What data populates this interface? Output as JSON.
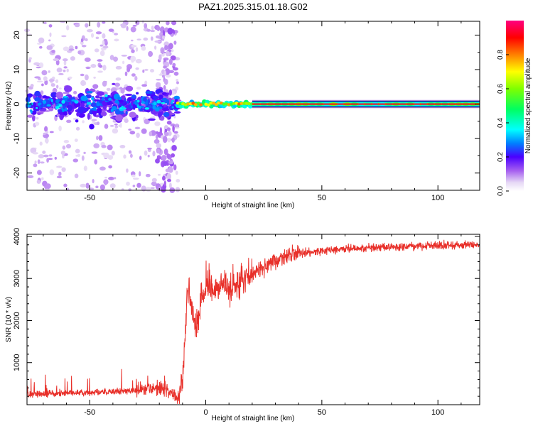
{
  "title": "PAZ1.2025.315.01.18.G02",
  "chart_data": [
    {
      "type": "heatmap",
      "xlabel": "Height of straight line (km)",
      "ylabel": "Frequency (Hz)",
      "xlim": [
        -77,
        118
      ],
      "ylim": [
        -25,
        24
      ],
      "xticks": [
        -50,
        0,
        50,
        100
      ],
      "yticks": [
        -20,
        -10,
        0,
        10,
        20
      ],
      "colorbar": {
        "label": "Normalized spectral amplitude",
        "range": [
          0.0,
          1.0
        ],
        "ticks": [
          0.0,
          0.2,
          0.4,
          0.6,
          0.8
        ],
        "tick_labels": [
          "0.0",
          "0.2",
          "0.4",
          "0.6",
          "0.8"
        ]
      },
      "description_regions": [
        {
          "x_range": [
            -77,
            -12
          ],
          "freq_range": [
            -25,
            24
          ],
          "amplitude": "scattered low (0.0-0.3), strongest near 0 Hz"
        },
        {
          "x_range": [
            -12,
            20
          ],
          "freq_range": [
            -2,
            2
          ],
          "amplitude": "blobs 0.3-0.9 along 0 Hz"
        },
        {
          "x_range": [
            20,
            118
          ],
          "freq_range": [
            -1,
            1
          ],
          "amplitude": "steady tone ~1.0 at 0 Hz"
        }
      ]
    },
    {
      "type": "line",
      "xlabel": "Height of straight line (km)",
      "ylabel": "SNR (10 * v/v)",
      "xlim": [
        -77,
        118
      ],
      "ylim": [
        0,
        4050
      ],
      "xticks": [
        -50,
        0,
        50,
        100
      ],
      "yticks": [
        1000,
        2000,
        3000,
        4000
      ],
      "color": "#e8302a",
      "series": [
        {
          "name": "SNR",
          "x": [
            -77,
            -60,
            -45,
            -30,
            -20,
            -16,
            -12,
            -10,
            -8,
            -7,
            -6,
            -4,
            -2,
            0,
            5,
            10,
            15,
            20,
            25,
            30,
            35,
            40,
            50,
            60,
            70,
            80,
            90,
            100,
            110,
            118
          ],
          "y": [
            250,
            270,
            300,
            330,
            400,
            300,
            150,
            600,
            2500,
            2600,
            2300,
            1800,
            2600,
            2750,
            2850,
            2700,
            2900,
            3100,
            3300,
            3450,
            3550,
            3600,
            3650,
            3700,
            3730,
            3750,
            3760,
            3780,
            3800,
            3800
          ]
        }
      ]
    }
  ]
}
